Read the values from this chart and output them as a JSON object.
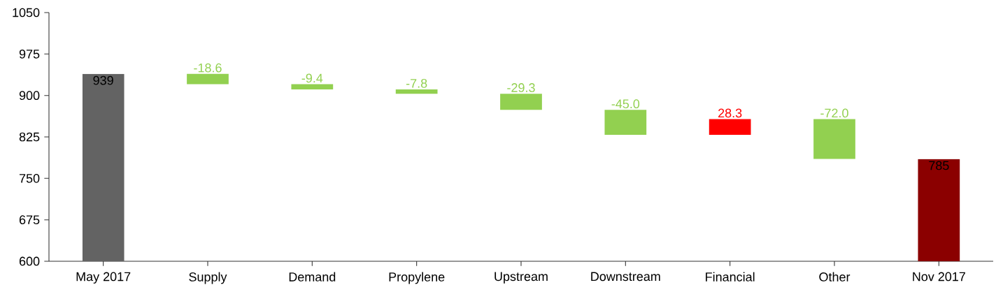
{
  "chart_data": {
    "type": "bar",
    "categories": [
      "May 2017",
      "Supply",
      "Demand",
      "Propylene",
      "Upstream",
      "Downstream",
      "Financial",
      "Other",
      "Nov 2017"
    ],
    "values": [
      939,
      -18.6,
      -9.4,
      -7.8,
      -29.3,
      -45.0,
      28.3,
      -72.0,
      785
    ],
    "base": [
      null,
      939,
      920.4,
      911,
      903.2,
      873.9,
      828.9,
      857.2,
      null
    ],
    "colors": [
      "#636363",
      "#92d050",
      "#92d050",
      "#92d050",
      "#92d050",
      "#92d050",
      "#ff0000",
      "#92d050",
      "#8b0000"
    ],
    "value_labels": [
      "939",
      "-18.6",
      "-9.4",
      "-7.8",
      "-29.3",
      "-45.0",
      "28.3",
      "-72.0",
      "785"
    ],
    "ylim": [
      600,
      1050
    ],
    "yticks": [
      600,
      675,
      750,
      825,
      900,
      975,
      1050
    ],
    "grid": false
  }
}
